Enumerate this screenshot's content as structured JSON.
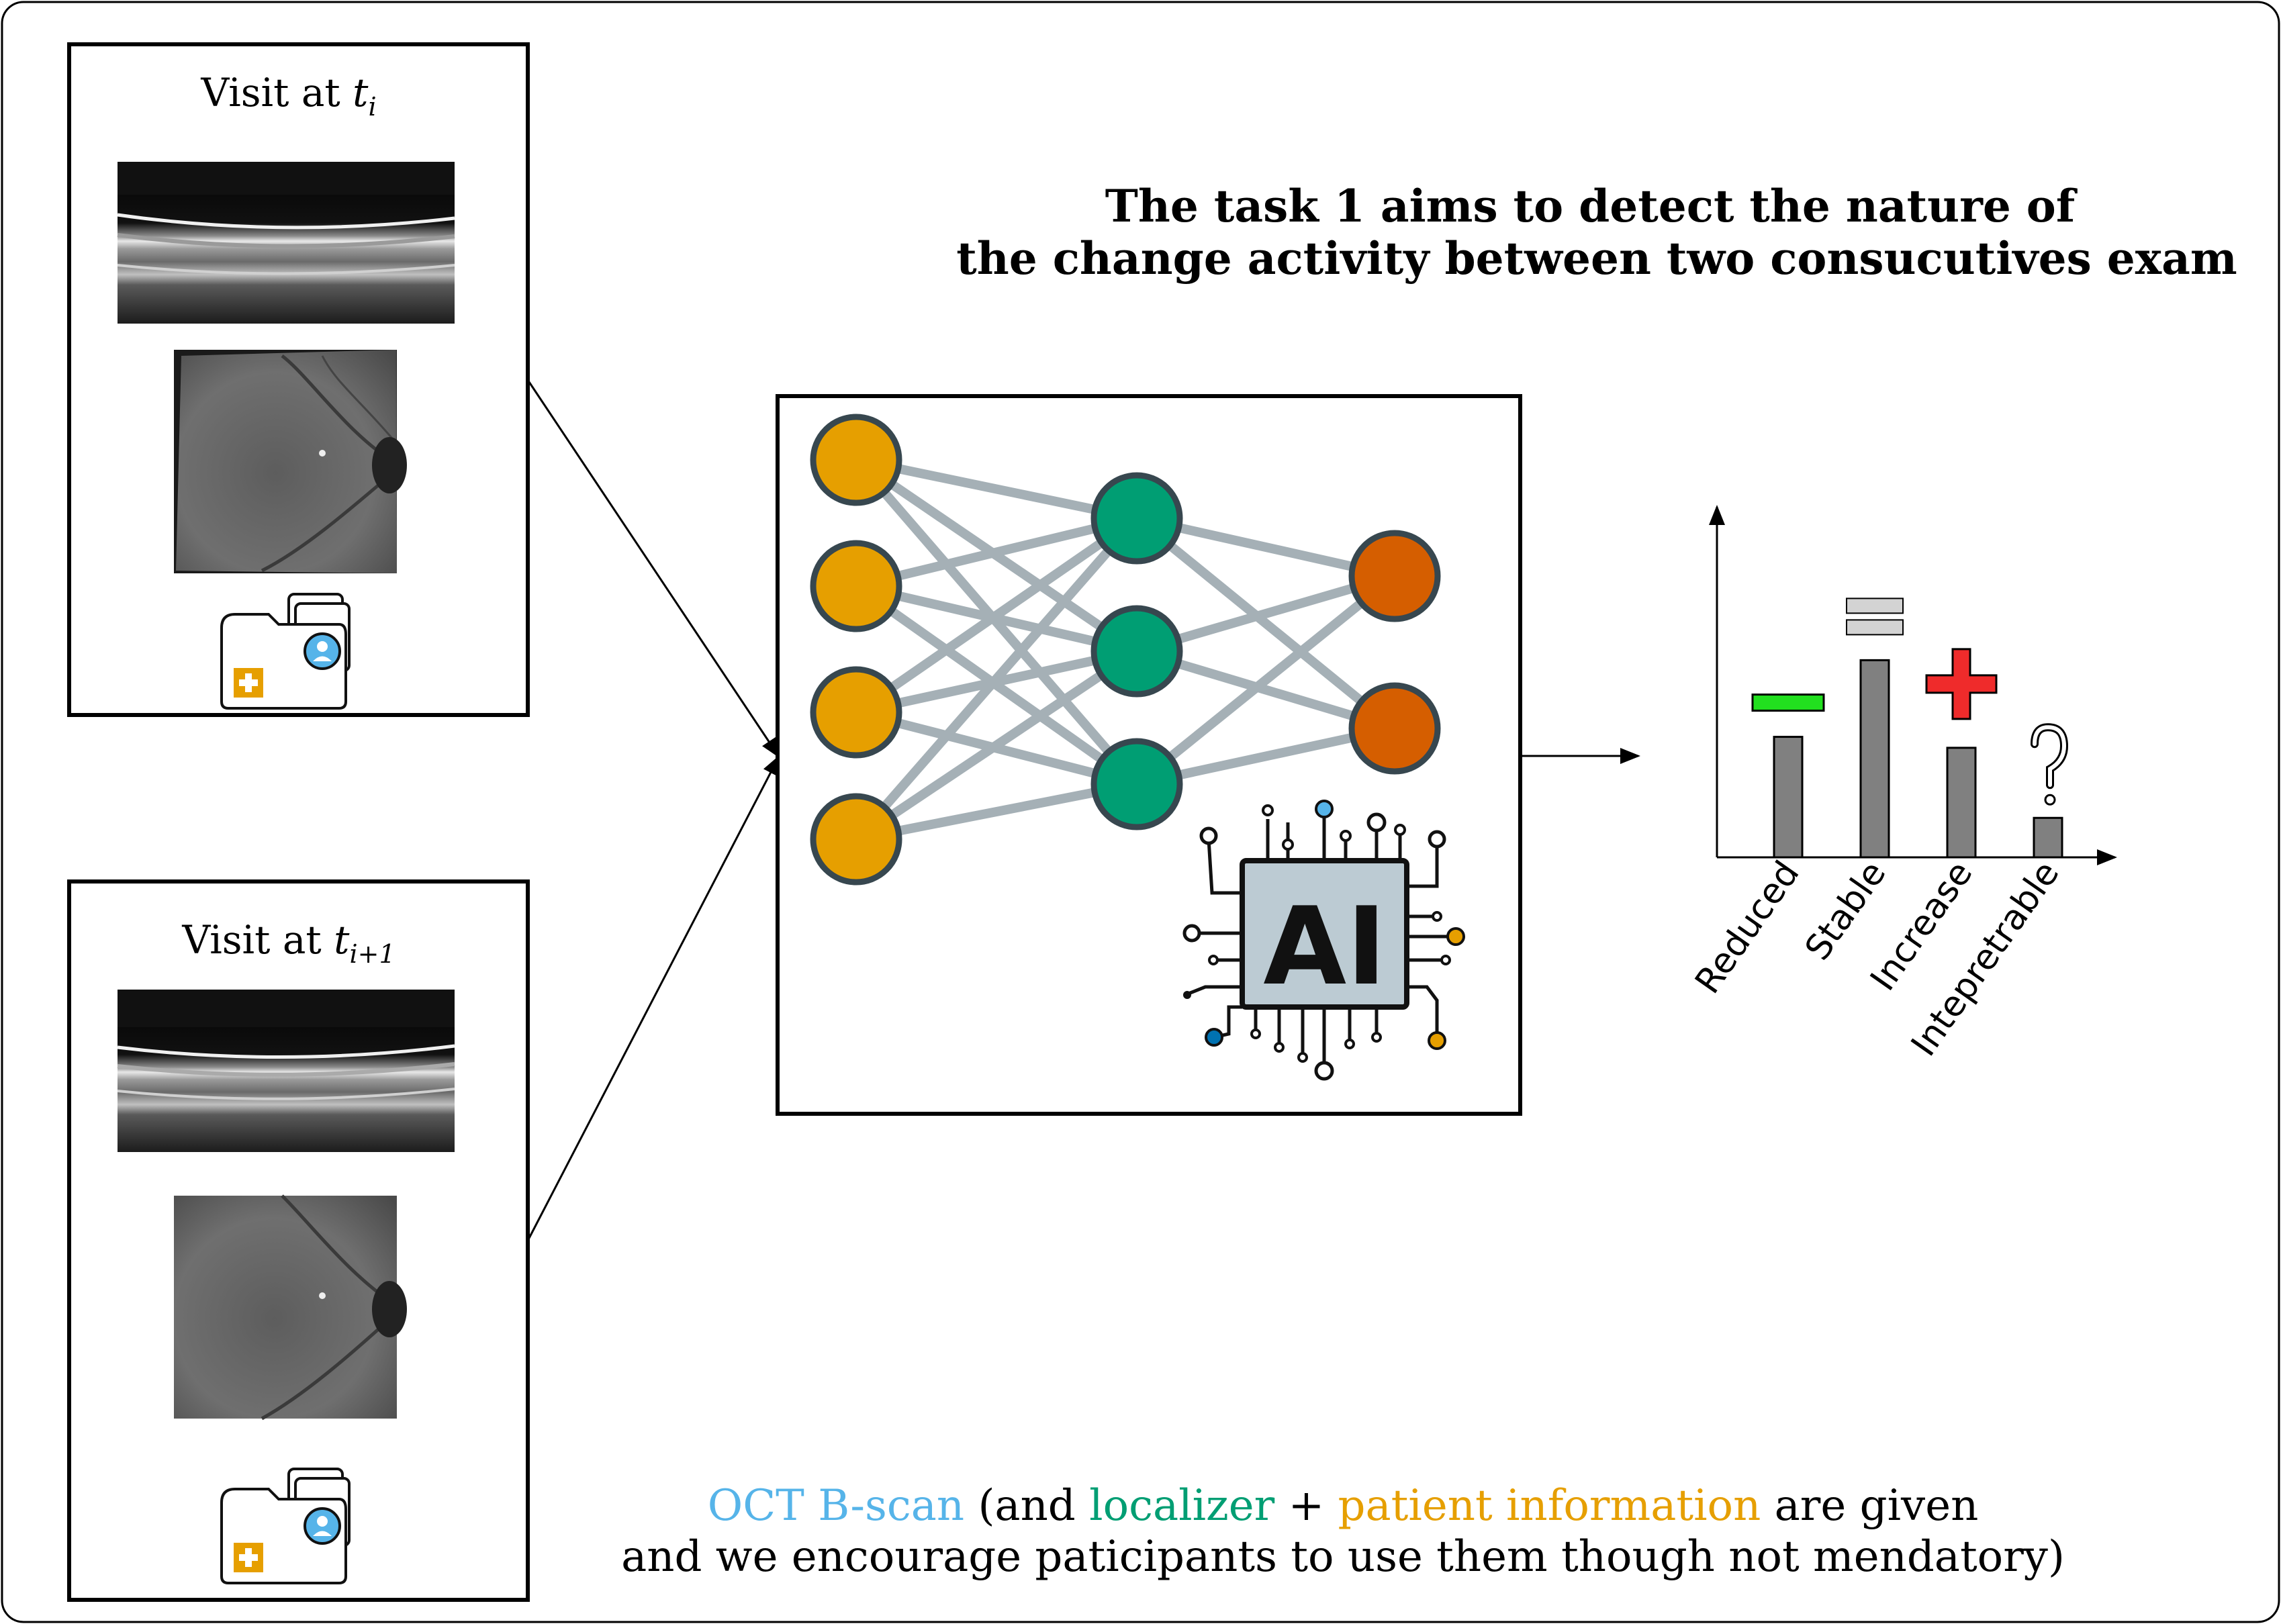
{
  "visits": [
    {
      "label": "Visit at ",
      "var": "t",
      "sub": "i"
    },
    {
      "label": "Visit at ",
      "var": "t",
      "sub": "i+1"
    }
  ],
  "task_title": {
    "line1": "The task 1 aims to detect the nature of",
    "line2": "the change activity between two consucutives exam"
  },
  "ai_chip_label": "AI",
  "network": {
    "input_color": "#e69f00",
    "hidden_color": "#009e73",
    "output_color": "#d55e00",
    "edge_color": "#a5b0b6",
    "node_stroke": "#37474f"
  },
  "chart_data": {
    "type": "bar",
    "categories": [
      "Reduced",
      "Stable",
      "Increase",
      "Intepretrable"
    ],
    "values": [
      0.55,
      0.9,
      0.5,
      0.18
    ],
    "symbols": [
      "minus",
      "equals",
      "plus",
      "question"
    ],
    "symbol_colors": [
      "#22e01f",
      "#d3d3d3",
      "#ef2b2b",
      "#ffffff"
    ],
    "bar_color": "#808080",
    "ylim": [
      0,
      1.6
    ]
  },
  "caption": {
    "line1": {
      "part1": "OCT B-scan",
      "part2": " (and ",
      "part3": "localizer",
      "part4": " + ",
      "part5": "patient information",
      "part6": " are given"
    },
    "line2": "and we encourage paticipants to use them though not mendatory)",
    "colors": {
      "oct": "#56b4e9",
      "localizer": "#009e73",
      "patient": "#e69f00"
    }
  }
}
